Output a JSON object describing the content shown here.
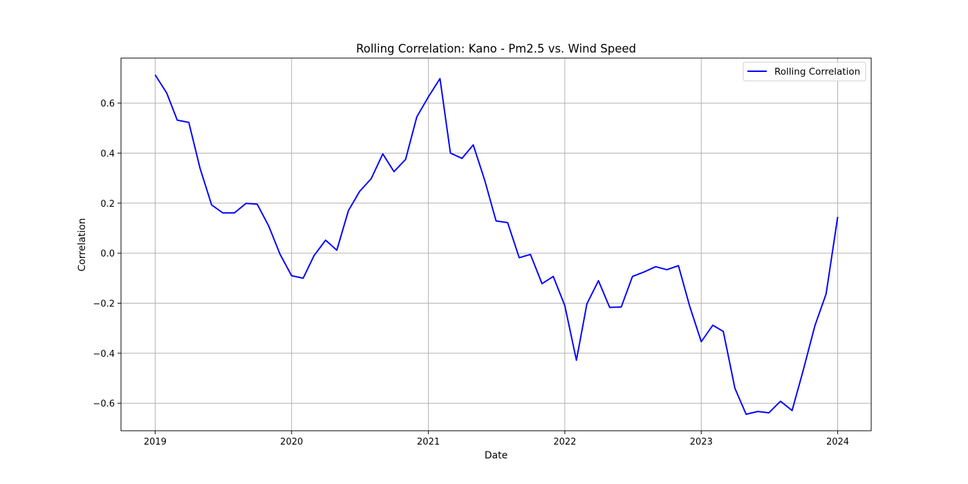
{
  "chart_data": {
    "type": "line",
    "title": "Rolling Correlation: Kano - Pm2.5 vs. Wind Speed",
    "xlabel": "Date",
    "ylabel": "Correlation",
    "x_ticks": [
      "2019",
      "2020",
      "2021",
      "2022",
      "2023",
      "2024"
    ],
    "y_ticks": [
      "0.6",
      "0.4",
      "0.2",
      "0.0",
      "−0.2",
      "−0.4",
      "−0.6"
    ],
    "ylim": [
      -0.71,
      0.78
    ],
    "xlim": [
      "2018-10-01",
      "2024-03-31"
    ],
    "grid": true,
    "legend_position": "upper right",
    "series": [
      {
        "name": "Rolling Correlation",
        "color": "#0000ff",
        "points": [
          {
            "date": "2019-01",
            "y": 0.713
          },
          {
            "date": "2019-02",
            "y": 0.64
          },
          {
            "date": "2019-03",
            "y": 0.532
          },
          {
            "date": "2019-04",
            "y": 0.523
          },
          {
            "date": "2019-05",
            "y": 0.34
          },
          {
            "date": "2019-06",
            "y": 0.193
          },
          {
            "date": "2019-07",
            "y": 0.161
          },
          {
            "date": "2019-08",
            "y": 0.161
          },
          {
            "date": "2019-09",
            "y": 0.199
          },
          {
            "date": "2019-10",
            "y": 0.196
          },
          {
            "date": "2019-11",
            "y": 0.108
          },
          {
            "date": "2019-12",
            "y": -0.004
          },
          {
            "date": "2020-01",
            "y": -0.09
          },
          {
            "date": "2020-02",
            "y": -0.1
          },
          {
            "date": "2020-03",
            "y": -0.01
          },
          {
            "date": "2020-04",
            "y": 0.052
          },
          {
            "date": "2020-05",
            "y": 0.012
          },
          {
            "date": "2020-06",
            "y": 0.17
          },
          {
            "date": "2020-07",
            "y": 0.247
          },
          {
            "date": "2020-08",
            "y": 0.298
          },
          {
            "date": "2020-09",
            "y": 0.397
          },
          {
            "date": "2020-10",
            "y": 0.326
          },
          {
            "date": "2020-11",
            "y": 0.375
          },
          {
            "date": "2020-12",
            "y": 0.545
          },
          {
            "date": "2021-01",
            "y": 0.625
          },
          {
            "date": "2021-02",
            "y": 0.698
          },
          {
            "date": "2021-03",
            "y": 0.4
          },
          {
            "date": "2021-04",
            "y": 0.379
          },
          {
            "date": "2021-05",
            "y": 0.433
          },
          {
            "date": "2021-06",
            "y": 0.29
          },
          {
            "date": "2021-07",
            "y": 0.129
          },
          {
            "date": "2021-08",
            "y": 0.122
          },
          {
            "date": "2021-09",
            "y": -0.018
          },
          {
            "date": "2021-10",
            "y": -0.005
          },
          {
            "date": "2021-11",
            "y": -0.122
          },
          {
            "date": "2021-12",
            "y": -0.093
          },
          {
            "date": "2022-01",
            "y": -0.21
          },
          {
            "date": "2022-02",
            "y": -0.428
          },
          {
            "date": "2022-03",
            "y": -0.203
          },
          {
            "date": "2022-04",
            "y": -0.11
          },
          {
            "date": "2022-05",
            "y": -0.217
          },
          {
            "date": "2022-06",
            "y": -0.215
          },
          {
            "date": "2022-07",
            "y": -0.093
          },
          {
            "date": "2022-08",
            "y": -0.075
          },
          {
            "date": "2022-09",
            "y": -0.054
          },
          {
            "date": "2022-10",
            "y": -0.066
          },
          {
            "date": "2022-11",
            "y": -0.05
          },
          {
            "date": "2022-12",
            "y": -0.212
          },
          {
            "date": "2023-01",
            "y": -0.354
          },
          {
            "date": "2023-02",
            "y": -0.288
          },
          {
            "date": "2023-03",
            "y": -0.313
          },
          {
            "date": "2023-04",
            "y": -0.54
          },
          {
            "date": "2023-05",
            "y": -0.644
          },
          {
            "date": "2023-06",
            "y": -0.633
          },
          {
            "date": "2023-07",
            "y": -0.638
          },
          {
            "date": "2023-08",
            "y": -0.592
          },
          {
            "date": "2023-09",
            "y": -0.629
          },
          {
            "date": "2023-10",
            "y": -0.467
          },
          {
            "date": "2023-11",
            "y": -0.29
          },
          {
            "date": "2023-12",
            "y": -0.163
          },
          {
            "date": "2024-01",
            "y": 0.145
          }
        ]
      }
    ]
  }
}
